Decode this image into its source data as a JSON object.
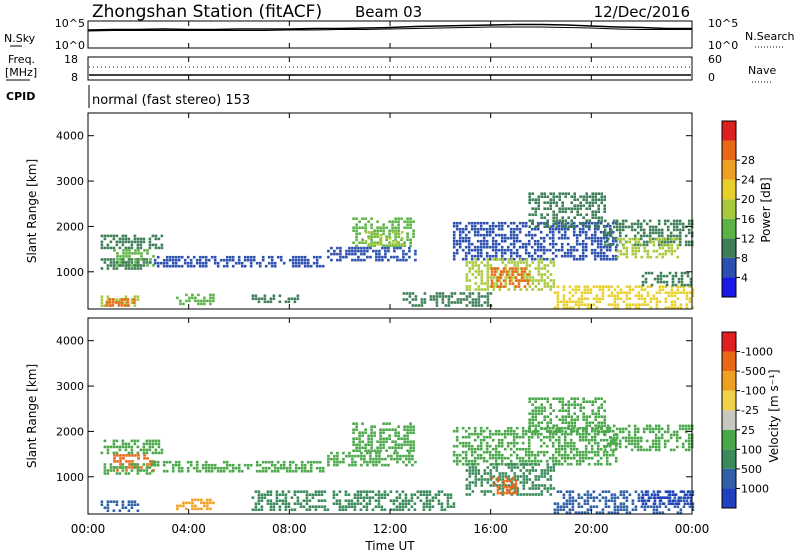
{
  "header": {
    "station": "Zhongshan Station (fitACF)",
    "beam": "Beam 03",
    "date": "12/Dec/2016"
  },
  "noise_panel": {
    "left_label": "N.Sky",
    "right_label": "N.Search",
    "tick_high": "10^5",
    "tick_low": "10^0",
    "series": [
      {
        "name": "N.Sky",
        "values": [
          3.4,
          3.5,
          3.5,
          3.6,
          3.5,
          3.5,
          3.6,
          3.6,
          3.6,
          3.7,
          3.7,
          3.8,
          3.9,
          4.1,
          4.2,
          4.3,
          4.4,
          4.5,
          4.5,
          4.4,
          4.2,
          4.0,
          3.9,
          3.7,
          3.7
        ]
      },
      {
        "name": "N.Search",
        "values": [
          3.2,
          3.3,
          3.3,
          3.3,
          3.3,
          3.3,
          3.3,
          3.3,
          3.4,
          3.4,
          3.5,
          3.5,
          3.6,
          3.7,
          3.8,
          3.9,
          4.0,
          4.0,
          4.0,
          3.9,
          3.8,
          3.6,
          3.5,
          3.5,
          3.5
        ]
      }
    ]
  },
  "freq_panel": {
    "left_label_1": "Freq.",
    "left_label_2": "[MHz]",
    "right_label": "Nave",
    "tick_left_high": "18",
    "tick_left_low": "8",
    "tick_right_high": "60",
    "tick_right_low": "0"
  },
  "cpid_panel": {
    "label": "CPID",
    "text": "normal (fast stereo) 153"
  },
  "chart_data": [
    {
      "type": "heatmap",
      "panel": "power",
      "ylabel": "Slant Range [km]",
      "xlabel": "Time UT",
      "ylim": [
        180,
        4500
      ],
      "yticks": [
        1000,
        2000,
        3000,
        4000
      ],
      "xticks": [
        "00:00",
        "04:00",
        "08:00",
        "12:00",
        "16:00",
        "20:00",
        "00:00"
      ],
      "colorbar": {
        "label": "Power [dB]",
        "ticks": [
          "4",
          "8",
          "12",
          "16",
          "20",
          "24",
          "28"
        ],
        "colors": [
          "#1a1ae6",
          "#2c4fb0",
          "#3e7f58",
          "#5bb345",
          "#a8c83c",
          "#e8d02a",
          "#f0a020",
          "#e86818",
          "#dc2020"
        ]
      },
      "regions": [
        {
          "t": [
            0.5,
            3.0
          ],
          "r": [
            1550,
            1820
          ],
          "v": 8
        },
        {
          "t": [
            1.0,
            2.6
          ],
          "r": [
            1150,
            1500
          ],
          "v": 12
        },
        {
          "t": [
            0.5,
            2.5
          ],
          "r": [
            1100,
            1300
          ],
          "v": 8
        },
        {
          "t": [
            0.5,
            2.0
          ],
          "r": [
            240,
            480
          ],
          "v": 16
        },
        {
          "t": [
            0.7,
            1.8
          ],
          "r": [
            280,
            420
          ],
          "v": 26
        },
        {
          "t": [
            2.5,
            9.5
          ],
          "r": [
            1150,
            1350
          ],
          "v": 5
        },
        {
          "t": [
            3.5,
            5.0
          ],
          "r": [
            280,
            520
          ],
          "v": 10
        },
        {
          "t": [
            6.5,
            8.5
          ],
          "r": [
            320,
            500
          ],
          "v": 7
        },
        {
          "t": [
            9.5,
            13.0
          ],
          "r": [
            1250,
            1550
          ],
          "v": 6
        },
        {
          "t": [
            10.5,
            13.0
          ],
          "r": [
            1550,
            2200
          ],
          "v": 10
        },
        {
          "t": [
            11.0,
            12.5
          ],
          "r": [
            1600,
            1900
          ],
          "v": 16
        },
        {
          "t": [
            14.5,
            21.0
          ],
          "r": [
            1250,
            2100
          ],
          "v": 6
        },
        {
          "t": [
            15.0,
            18.5
          ],
          "r": [
            600,
            1300
          ],
          "v": 16
        },
        {
          "t": [
            16.0,
            17.5
          ],
          "r": [
            650,
            1100
          ],
          "v": 24
        },
        {
          "t": [
            17.5,
            20.5
          ],
          "r": [
            2000,
            2750
          ],
          "v": 7
        },
        {
          "t": [
            20.5,
            24.0
          ],
          "r": [
            1600,
            2150
          ],
          "v": 8
        },
        {
          "t": [
            21.0,
            23.5
          ],
          "r": [
            1350,
            1750
          ],
          "v": 14
        },
        {
          "t": [
            18.5,
            24.0
          ],
          "r": [
            220,
            700
          ],
          "v": 18
        },
        {
          "t": [
            12.5,
            16.0
          ],
          "r": [
            250,
            550
          ],
          "v": 7
        },
        {
          "t": [
            22.0,
            24.0
          ],
          "r": [
            700,
            1000
          ],
          "v": 8
        }
      ]
    },
    {
      "type": "heatmap",
      "panel": "velocity",
      "ylabel": "Slant Range [km]",
      "xlabel": "Time UT",
      "ylim": [
        180,
        4500
      ],
      "yticks": [
        1000,
        2000,
        3000,
        4000
      ],
      "xticks": [
        "00:00",
        "04:00",
        "08:00",
        "12:00",
        "16:00",
        "20:00",
        "00:00"
      ],
      "colorbar": {
        "label": "Velocity [m s⁻¹]",
        "ticks": [
          "1000",
          "500",
          "100",
          "25",
          "-25",
          "-100",
          "-500",
          "-1000"
        ],
        "colors": [
          "#2040c0",
          "#3060a8",
          "#3a8a5a",
          "#4aa84a",
          "#c8c8c0",
          "#f0d24a",
          "#f0a020",
          "#e86818",
          "#e02020"
        ]
      },
      "regions": [
        {
          "t": [
            0.5,
            3.0
          ],
          "r": [
            1550,
            1820
          ],
          "v": 25
        },
        {
          "t": [
            1.0,
            2.6
          ],
          "r": [
            1150,
            1500
          ],
          "v": -400
        },
        {
          "t": [
            0.5,
            2.5
          ],
          "r": [
            1100,
            1300
          ],
          "v": 25
        },
        {
          "t": [
            0.5,
            2.0
          ],
          "r": [
            240,
            480
          ],
          "v": 300
        },
        {
          "t": [
            3.5,
            5.0
          ],
          "r": [
            280,
            520
          ],
          "v": -300
        },
        {
          "t": [
            2.5,
            9.5
          ],
          "r": [
            1150,
            1350
          ],
          "v": 25
        },
        {
          "t": [
            9.5,
            13.0
          ],
          "r": [
            1250,
            1550
          ],
          "v": 25
        },
        {
          "t": [
            10.5,
            13.0
          ],
          "r": [
            1550,
            2200
          ],
          "v": 25
        },
        {
          "t": [
            14.5,
            21.0
          ],
          "r": [
            1250,
            2100
          ],
          "v": 25
        },
        {
          "t": [
            15.0,
            18.5
          ],
          "r": [
            600,
            1300
          ],
          "v": 200
        },
        {
          "t": [
            16.0,
            17.0
          ],
          "r": [
            650,
            1000
          ],
          "v": -400
        },
        {
          "t": [
            17.5,
            20.5
          ],
          "r": [
            2000,
            2750
          ],
          "v": 25
        },
        {
          "t": [
            20.5,
            24.0
          ],
          "r": [
            1600,
            2150
          ],
          "v": 25
        },
        {
          "t": [
            18.5,
            24.0
          ],
          "r": [
            220,
            700
          ],
          "v": 300
        },
        {
          "t": [
            22.0,
            24.0
          ],
          "r": [
            400,
            700
          ],
          "v": 800
        },
        {
          "t": [
            6.5,
            14.5
          ],
          "r": [
            250,
            700
          ],
          "v": 150
        }
      ]
    }
  ],
  "colors": {
    "axis": "#000000",
    "background": "#ffffff"
  }
}
